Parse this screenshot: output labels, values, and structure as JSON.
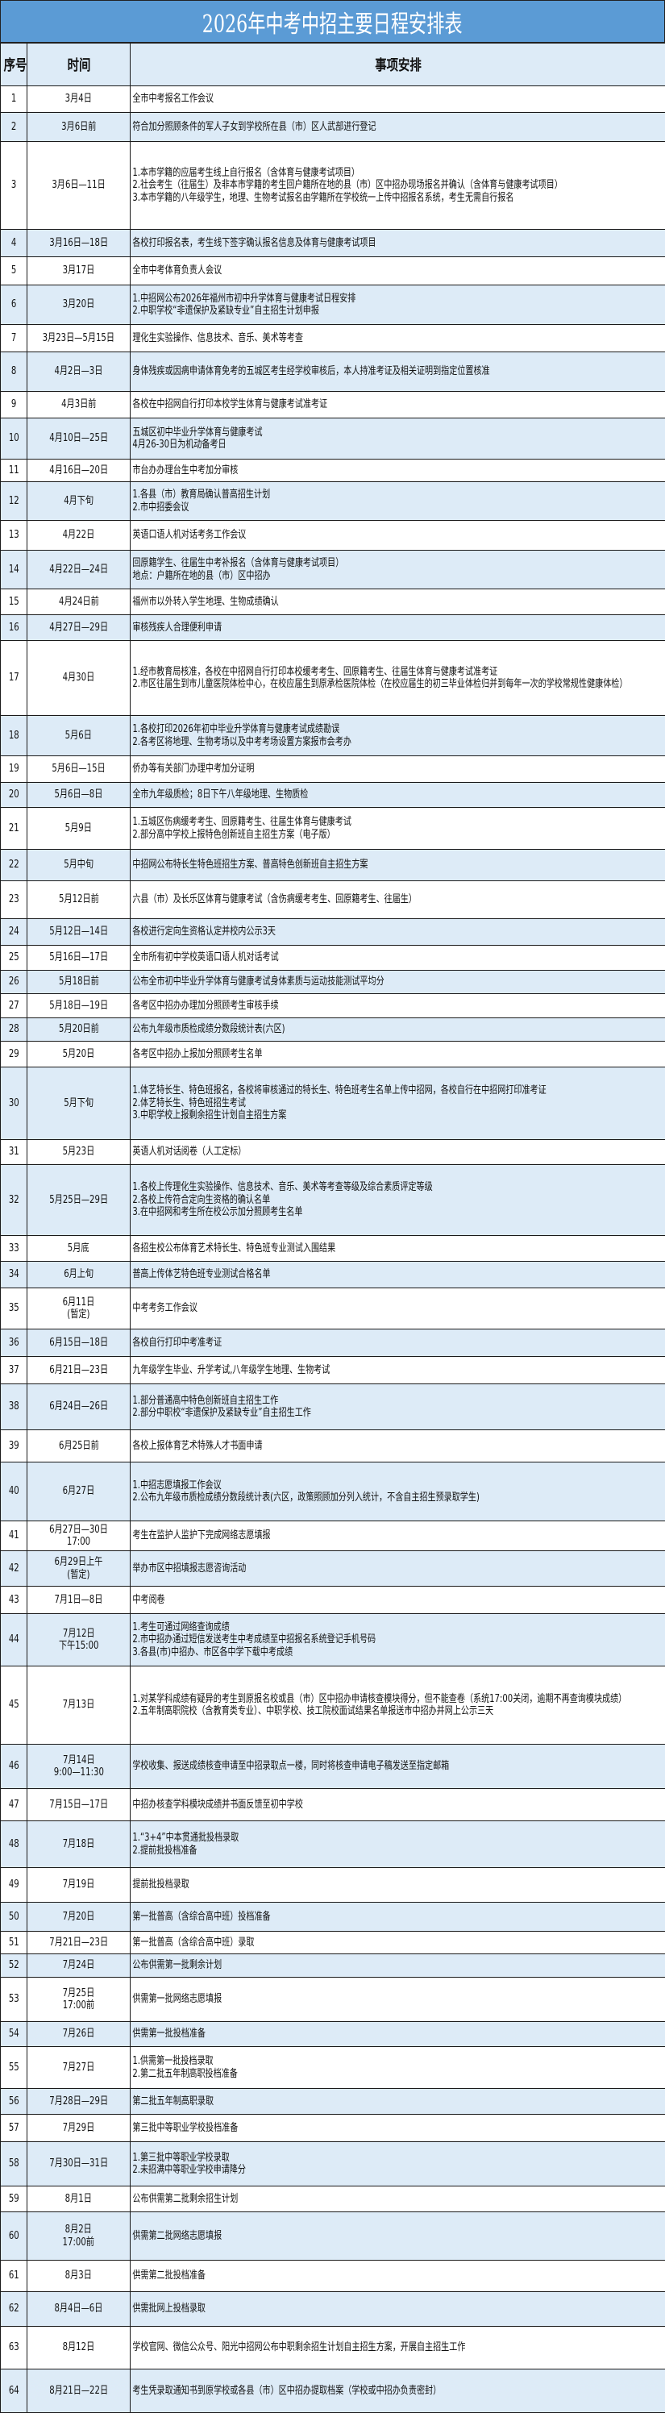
{
  "title": "2026年中考中招主要日程安排表",
  "header": {
    "col_no": "序号",
    "col_time": "时间",
    "col_event": "事项安排"
  },
  "colors": {
    "title_bg": "#5b9bd5",
    "band_bg": "#ddebf7",
    "title_text": "#ffffff"
  },
  "rows": [
    {
      "no": "1",
      "time": "3月4日",
      "event": "全市中考报名工作会议"
    },
    {
      "no": "2",
      "time": "3月6日前",
      "event": "符合加分照顾条件的军人子女到学校所在县（市）区人武部进行登记"
    },
    {
      "no": "3",
      "time": "3月6日—11日",
      "event": "1.本市学籍的应届考生线上自行报名（含体育与健康考试项目）\n2.社会考生（往届生）及非本市学籍的考生回户籍所在地的县（市）区中招办现场报名并确认（含体育与健康考试项目）\n3.本市学籍的八年级学生，地理、生物考试报名由学籍所在学校统一上传中招报名系统，考生无需自行报名"
    },
    {
      "no": "4",
      "time": "3月16日—18日",
      "event": "各校打印报名表，考生线下签字确认报名信息及体育与健康考试项目"
    },
    {
      "no": "5",
      "time": "3月17日",
      "event": "全市中考体育负责人会议"
    },
    {
      "no": "6",
      "time": "3月20日",
      "event": "1.中招网公布2026年福州市初中升学体育与健康考试日程安排\n2.中职学校“非遗保护及紧缺专业”自主招生计划申报"
    },
    {
      "no": "7",
      "time": "3月23日—5月15日",
      "event": "理化生实验操作、信息技术、音乐、美术等考查"
    },
    {
      "no": "8",
      "time": "4月2日—3日",
      "event": "身体残疾或因病申请体育免考的五城区考生经学校审核后，本人持准考证及相关证明到指定位置核准"
    },
    {
      "no": "9",
      "time": "4月3日前",
      "event": "各校在中招网自行打印本校学生体育与健康考试准考证"
    },
    {
      "no": "10",
      "time": "4月10日—25日",
      "event": "五城区初中毕业升学体育与健康考试\n4月26-30日为机动备考日"
    },
    {
      "no": "11",
      "time": "4月16日—20日",
      "event": "市台办办理台生中考加分审核"
    },
    {
      "no": "12",
      "time": "4月下旬",
      "event": "1.各县（市）教育局确认普高招生计划\n2.市中招委会议"
    },
    {
      "no": "13",
      "time": "4月22日",
      "event": "英语口语人机对话考务工作会议"
    },
    {
      "no": "14",
      "time": "4月22日—24日",
      "event": "回原籍学生、往届生中考补报名（含体育与健康考试项目）\n地点：户籍所在地的县（市）区中招办"
    },
    {
      "no": "15",
      "time": "4月24日前",
      "event": "福州市以外转入学生地理、生物成绩确认"
    },
    {
      "no": "16",
      "time": "4月27日—29日",
      "event": "审核残疾人合理便利申请"
    },
    {
      "no": "17",
      "time": "4月30日",
      "event": "1.经市教育局核准，各校在中招网自行打印本校缓考考生、回原籍考生、往届生体育与健康考试准考证\n2.市区往届生到市儿童医院体检中心，在校应届生到原承检医院体检（在校应届生的初三毕业体检归并到每年一次的学校常规性健康体检）"
    },
    {
      "no": "18",
      "time": "5月6日",
      "event": "1.各校打印2026年初中毕业升学体育与健康考试成绩勘误\n2.各考区将地理、生物考场以及中考考场设置方案报市会考办"
    },
    {
      "no": "19",
      "time": "5月6日—15日",
      "event": "侨办等有关部门办理中考加分证明"
    },
    {
      "no": "20",
      "time": "5月6日—8日",
      "event": "全市九年级质检；8日下午八年级地理、生物质检"
    },
    {
      "no": "21",
      "time": "5月9日",
      "event": "1.五城区伤病缓考考生、回原籍考生、往届生体育与健康考试\n2.部分高中学校上报特色创新班自主招生方案（电子版）"
    },
    {
      "no": "22",
      "time": "5月中旬",
      "event": "中招网公布特长生特色班招生方案、普高特色创新班自主招生方案"
    },
    {
      "no": "23",
      "time": "5月12日前",
      "event": "六县（市）及长乐区体育与健康考试（含伤病缓考考生、回原籍考生、往届生）"
    },
    {
      "no": "24",
      "time": "5月12日—14日",
      "event": "各校进行定向生资格认定并校内公示3天"
    },
    {
      "no": "25",
      "time": "5月16日—17日",
      "event": "全市所有初中学校英语口语人机对话考试"
    },
    {
      "no": "26",
      "time": "5月18日前",
      "event": "公布全市初中毕业升学体育与健康考试身体素质与运动技能测试平均分"
    },
    {
      "no": "27",
      "time": "5月18日—19日",
      "event": "各考区中招办办理加分照顾考生审核手续"
    },
    {
      "no": "28",
      "time": "5月20日前",
      "event": "公布九年级市质检成绩分数段统计表(六区)"
    },
    {
      "no": "29",
      "time": "5月20日",
      "event": "各考区中招办上报加分照顾考生名单"
    },
    {
      "no": "30",
      "time": "5月下旬",
      "event": "1.体艺特长生、特色班报名，各校将审核通过的特长生、特色班考生名单上传中招网，各校自行在中招网打印准考证\n2.体艺特长生、特色班招生考试\n3.中职学校上报剩余招生计划自主招生方案"
    },
    {
      "no": "31",
      "time": "5月23日",
      "event": "英语人机对话阅卷（人工定标）"
    },
    {
      "no": "32",
      "time": "5月25日—29日",
      "event": "1.各校上传理化生实验操作、信息技术、音乐、美术等考查等级及综合素质评定等级\n2.各校上传符合定向生资格的确认名单\n3.在中招网和考生所在校公示加分照顾考生名单"
    },
    {
      "no": "33",
      "time": "5月底",
      "event": "各招生校公布体育艺术特长生、特色班专业测试入围结果"
    },
    {
      "no": "34",
      "time": "6月上旬",
      "event": "普高上传体艺特色班专业测试合格名单"
    },
    {
      "no": "35",
      "time": "6月11日\n(暂定)",
      "event": "中考考务工作会议"
    },
    {
      "no": "36",
      "time": "6月15日—18日",
      "event": "各校自行打印中考准考证"
    },
    {
      "no": "37",
      "time": "6月21日—23日",
      "event": "九年级学生毕业、升学考试,八年级学生地理、生物考试"
    },
    {
      "no": "38",
      "time": "6月24日—26日",
      "event": "1.部分普通高中特色创新班自主招生工作\n2.部分中职校“非遗保护及紧缺专业”自主招生工作"
    },
    {
      "no": "39",
      "time": "6月25日前",
      "event": "各校上报体育艺术特殊人才书面申请"
    },
    {
      "no": "40",
      "time": "6月27日",
      "event": "1.中招志愿填报工作会议\n2.公布九年级市质检成绩分数段统计表(六区，政策照顾加分列入统计，不含自主招生预录取学生)"
    },
    {
      "no": "41",
      "time": "6月27日—30日17:00",
      "event": "考生在监护人监护下完成网络志愿填报"
    },
    {
      "no": "42",
      "time": "6月29日上午\n(暂定)",
      "event": "举办市区中招填报志愿咨询活动"
    },
    {
      "no": "43",
      "time": "7月1日—8日",
      "event": "中考阅卷"
    },
    {
      "no": "44",
      "time": "7月12日\n下午15:00",
      "event": "1.考生可通过网络查询成绩\n2.市中招办通过短信发送考生中考成绩至中招报名系统登记手机号码\n3.各县(市)中招办、市区各中学下载中考成绩"
    },
    {
      "no": "45",
      "time": "7月13日",
      "event": "1.对某学科成绩有疑异的考生到原报名校或县（市）区中招办申请核查模块得分，但不能查卷（系统17:00关闭，逾期不再查询模块成绩）\n2.五年制高职院校（含教育类专业）、中职学校、技工院校面试结果名单报送市中招办并网上公示三天"
    },
    {
      "no": "46",
      "time": "7月14日\n9:00—11:30",
      "event": "学校收集、报送成绩核查申请至中招录取点一楼，同时将核查申请电子稿发送至指定邮箱"
    },
    {
      "no": "47",
      "time": "7月15日—17日",
      "event": "中招办核查学科模块成绩并书面反馈至初中学校"
    },
    {
      "no": "48",
      "time": "7月18日",
      "event": "1.“3+4”中本贯通批投档录取\n2.提前批投档准备"
    },
    {
      "no": "49",
      "time": "7月19日",
      "event": "提前批投档录取"
    },
    {
      "no": "50",
      "time": "7月20日",
      "event": "第一批普高（含综合高中班）投档准备"
    },
    {
      "no": "51",
      "time": "7月21日—23日",
      "event": "第一批普高（含综合高中班）录取"
    },
    {
      "no": "52",
      "time": "7月24日",
      "event": "公布供需第一批剩余计划"
    },
    {
      "no": "53",
      "time": "7月25日\n17:00前",
      "event": "供需第一批网络志愿填报"
    },
    {
      "no": "54",
      "time": "7月26日",
      "event": "供需第一批投档准备"
    },
    {
      "no": "55",
      "time": "7月27日",
      "event": "1.供需第一批投档录取\n2.第二批五年制高职投档准备"
    },
    {
      "no": "56",
      "time": "7月28日—29日",
      "event": "第二批五年制高职录取"
    },
    {
      "no": "57",
      "time": "7月29日",
      "event": "第三批中等职业学校投档准备"
    },
    {
      "no": "58",
      "time": "7月30日—31日",
      "event": "1.第三批中等职业学校录取\n2.未招满中等职业学校申请降分"
    },
    {
      "no": "59",
      "time": "8月1日",
      "event": "公布供需第二批剩余招生计划"
    },
    {
      "no": "60",
      "time": "8月2日\n17:00前",
      "event": "供需第二批网络志愿填报"
    },
    {
      "no": "61",
      "time": "8月3日",
      "event": "供需第二批投档准备"
    },
    {
      "no": "62",
      "time": "8月4日—6日",
      "event": "供需批网上投档录取"
    },
    {
      "no": "63",
      "time": "8月12日",
      "event": "学校官网、微信公众号、阳光中招网公布中职剩余招生计划自主招生方案，开展自主招生工作"
    },
    {
      "no": "64",
      "time": "8月21日—22日",
      "event": "考生凭录取通知书到原学校或各县（市）区中招办提取档案（学校或中招办负责密封）"
    }
  ]
}
